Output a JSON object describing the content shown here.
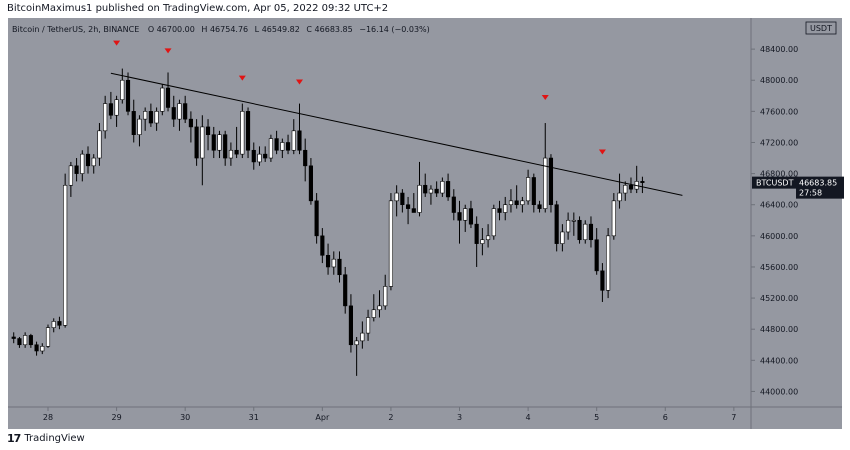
{
  "header": {
    "published_by": "BitcoinMaximus1 published on TradingView.com, Apr 05, 2022 09:32 UTC+2"
  },
  "footer": {
    "brand": "TradingView",
    "logo_text": "17"
  },
  "chart_data": {
    "type": "candlestick",
    "symbol_title": "Bitcoin / TetherUS, 2h, BINANCE",
    "ohlc_readout": {
      "o_label": "O",
      "o_value": "46700.00",
      "h_label": "H",
      "h_value": "46754.76",
      "l_label": "L",
      "l_value": "46549.82",
      "c_label": "C",
      "c_value": "46683.85",
      "change": "−16.14 (−0.03%)"
    },
    "currency_badge": "USDT",
    "price_tag": {
      "symbol": "BTCUSDT",
      "price": "46683.85",
      "countdown": "27:58",
      "value": 46683.85
    },
    "ylim": [
      43800,
      48800
    ],
    "y_ticks": [
      {
        "value": 44000,
        "label": "44000.00"
      },
      {
        "value": 44400,
        "label": "44400.00"
      },
      {
        "value": 44800,
        "label": "44800.00"
      },
      {
        "value": 45200,
        "label": "45200.00"
      },
      {
        "value": 45600,
        "label": "45600.00"
      },
      {
        "value": 46000,
        "label": "46000.00"
      },
      {
        "value": 46400,
        "label": "46400.00"
      },
      {
        "value": 46800,
        "label": "46800.00"
      },
      {
        "value": 47200,
        "label": "47200.00"
      },
      {
        "value": 47600,
        "label": "47600.00"
      },
      {
        "value": 48000,
        "label": "48000.00"
      },
      {
        "value": 48400,
        "label": "48400.00"
      }
    ],
    "x_ticks": [
      {
        "index": 6,
        "label": "28"
      },
      {
        "index": 18,
        "label": "29"
      },
      {
        "index": 30,
        "label": "30"
      },
      {
        "index": 42,
        "label": "31"
      },
      {
        "index": 54,
        "label": "Apr"
      },
      {
        "index": 66,
        "label": "2"
      },
      {
        "index": 78,
        "label": "3"
      },
      {
        "index": 90,
        "label": "4"
      },
      {
        "index": 102,
        "label": "5"
      },
      {
        "index": 114,
        "label": "6"
      },
      {
        "index": 126,
        "label": "7"
      }
    ],
    "x_range": [
      -1,
      129
    ],
    "candles": [
      {
        "o": 44700,
        "h": 44760,
        "l": 44620,
        "c": 44680
      },
      {
        "o": 44680,
        "h": 44700,
        "l": 44560,
        "c": 44600
      },
      {
        "o": 44600,
        "h": 44760,
        "l": 44560,
        "c": 44720
      },
      {
        "o": 44720,
        "h": 44740,
        "l": 44560,
        "c": 44600
      },
      {
        "o": 44600,
        "h": 44640,
        "l": 44460,
        "c": 44520
      },
      {
        "o": 44520,
        "h": 44620,
        "l": 44480,
        "c": 44580
      },
      {
        "o": 44580,
        "h": 44860,
        "l": 44560,
        "c": 44820
      },
      {
        "o": 44820,
        "h": 44940,
        "l": 44760,
        "c": 44900
      },
      {
        "o": 44900,
        "h": 44960,
        "l": 44800,
        "c": 44850
      },
      {
        "o": 44850,
        "h": 46800,
        "l": 44820,
        "c": 46650
      },
      {
        "o": 46650,
        "h": 46950,
        "l": 46500,
        "c": 46900
      },
      {
        "o": 46900,
        "h": 47000,
        "l": 46700,
        "c": 46800
      },
      {
        "o": 46800,
        "h": 47100,
        "l": 46700,
        "c": 47050
      },
      {
        "o": 47050,
        "h": 47150,
        "l": 46800,
        "c": 46900
      },
      {
        "o": 46900,
        "h": 47050,
        "l": 46800,
        "c": 47000
      },
      {
        "o": 47000,
        "h": 47450,
        "l": 46900,
        "c": 47350
      },
      {
        "o": 47350,
        "h": 47800,
        "l": 47250,
        "c": 47700
      },
      {
        "o": 47700,
        "h": 47850,
        "l": 47500,
        "c": 47550
      },
      {
        "o": 47550,
        "h": 47800,
        "l": 47400,
        "c": 47750
      },
      {
        "o": 47750,
        "h": 48150,
        "l": 47700,
        "c": 48000
      },
      {
        "o": 48000,
        "h": 48100,
        "l": 47550,
        "c": 47600
      },
      {
        "o": 47600,
        "h": 47750,
        "l": 47200,
        "c": 47300
      },
      {
        "o": 47300,
        "h": 47550,
        "l": 47150,
        "c": 47500
      },
      {
        "o": 47500,
        "h": 47650,
        "l": 47350,
        "c": 47600
      },
      {
        "o": 47600,
        "h": 47700,
        "l": 47400,
        "c": 47450
      },
      {
        "o": 47450,
        "h": 47650,
        "l": 47350,
        "c": 47600
      },
      {
        "o": 47600,
        "h": 47950,
        "l": 47550,
        "c": 47900
      },
      {
        "o": 47900,
        "h": 48100,
        "l": 47600,
        "c": 47650
      },
      {
        "o": 47650,
        "h": 47800,
        "l": 47400,
        "c": 47500
      },
      {
        "o": 47500,
        "h": 47750,
        "l": 47350,
        "c": 47700
      },
      {
        "o": 47700,
        "h": 47800,
        "l": 47450,
        "c": 47500
      },
      {
        "o": 47500,
        "h": 47600,
        "l": 47200,
        "c": 47400
      },
      {
        "o": 47400,
        "h": 47500,
        "l": 46900,
        "c": 47000
      },
      {
        "o": 47000,
        "h": 47550,
        "l": 46650,
        "c": 47400
      },
      {
        "o": 47400,
        "h": 47500,
        "l": 47100,
        "c": 47300
      },
      {
        "o": 47300,
        "h": 47400,
        "l": 47000,
        "c": 47100
      },
      {
        "o": 47100,
        "h": 47350,
        "l": 47000,
        "c": 47300
      },
      {
        "o": 47300,
        "h": 47350,
        "l": 46900,
        "c": 47000
      },
      {
        "o": 47000,
        "h": 47200,
        "l": 46900,
        "c": 47100
      },
      {
        "o": 47100,
        "h": 47400,
        "l": 47000,
        "c": 47050
      },
      {
        "o": 47050,
        "h": 47700,
        "l": 47000,
        "c": 47600
      },
      {
        "o": 47600,
        "h": 47650,
        "l": 47000,
        "c": 47100
      },
      {
        "o": 47100,
        "h": 47200,
        "l": 46850,
        "c": 46950
      },
      {
        "o": 46950,
        "h": 47150,
        "l": 46900,
        "c": 47050
      },
      {
        "o": 47050,
        "h": 47150,
        "l": 46950,
        "c": 47000
      },
      {
        "o": 47000,
        "h": 47300,
        "l": 46950,
        "c": 47250
      },
      {
        "o": 47250,
        "h": 47350,
        "l": 47050,
        "c": 47100
      },
      {
        "o": 47100,
        "h": 47250,
        "l": 47000,
        "c": 47200
      },
      {
        "o": 47200,
        "h": 47300,
        "l": 47050,
        "c": 47100
      },
      {
        "o": 47100,
        "h": 47500,
        "l": 47050,
        "c": 47350
      },
      {
        "o": 47350,
        "h": 47700,
        "l": 47050,
        "c": 47100
      },
      {
        "o": 47100,
        "h": 47250,
        "l": 46700,
        "c": 46900
      },
      {
        "o": 46900,
        "h": 47000,
        "l": 46400,
        "c": 46450
      },
      {
        "o": 46450,
        "h": 46550,
        "l": 45900,
        "c": 46000
      },
      {
        "o": 46000,
        "h": 46100,
        "l": 45650,
        "c": 45750
      },
      {
        "o": 45750,
        "h": 45900,
        "l": 45500,
        "c": 45600
      },
      {
        "o": 45600,
        "h": 45800,
        "l": 45500,
        "c": 45700
      },
      {
        "o": 45700,
        "h": 45800,
        "l": 45400,
        "c": 45500
      },
      {
        "o": 45500,
        "h": 45600,
        "l": 45000,
        "c": 45100
      },
      {
        "o": 45100,
        "h": 45250,
        "l": 44500,
        "c": 44600
      },
      {
        "o": 44600,
        "h": 44700,
        "l": 44200,
        "c": 44650
      },
      {
        "o": 44650,
        "h": 44900,
        "l": 44550,
        "c": 44750
      },
      {
        "o": 44750,
        "h": 45050,
        "l": 44650,
        "c": 44950
      },
      {
        "o": 44950,
        "h": 45250,
        "l": 44900,
        "c": 45050
      },
      {
        "o": 45050,
        "h": 45300,
        "l": 44950,
        "c": 45100
      },
      {
        "o": 45100,
        "h": 45500,
        "l": 45050,
        "c": 45350
      },
      {
        "o": 45350,
        "h": 46550,
        "l": 45300,
        "c": 46450
      },
      {
        "o": 46450,
        "h": 46650,
        "l": 46250,
        "c": 46550
      },
      {
        "o": 46550,
        "h": 46600,
        "l": 46300,
        "c": 46400
      },
      {
        "o": 46400,
        "h": 46500,
        "l": 46150,
        "c": 46350
      },
      {
        "o": 46350,
        "h": 46550,
        "l": 46300,
        "c": 46300
      },
      {
        "o": 46300,
        "h": 46950,
        "l": 46250,
        "c": 46650
      },
      {
        "o": 46650,
        "h": 46800,
        "l": 46500,
        "c": 46550
      },
      {
        "o": 46550,
        "h": 46650,
        "l": 46400,
        "c": 46600
      },
      {
        "o": 46600,
        "h": 46700,
        "l": 46500,
        "c": 46550
      },
      {
        "o": 46550,
        "h": 46750,
        "l": 46500,
        "c": 46700
      },
      {
        "o": 46700,
        "h": 46800,
        "l": 46450,
        "c": 46500
      },
      {
        "o": 46500,
        "h": 46600,
        "l": 46200,
        "c": 46300
      },
      {
        "o": 46300,
        "h": 46450,
        "l": 45900,
        "c": 46200
      },
      {
        "o": 46200,
        "h": 46400,
        "l": 46050,
        "c": 46350
      },
      {
        "o": 46350,
        "h": 46450,
        "l": 46100,
        "c": 46150
      },
      {
        "o": 46150,
        "h": 46250,
        "l": 45600,
        "c": 45900
      },
      {
        "o": 45900,
        "h": 46100,
        "l": 45750,
        "c": 45950
      },
      {
        "o": 45950,
        "h": 46150,
        "l": 45850,
        "c": 46000
      },
      {
        "o": 46000,
        "h": 46400,
        "l": 45950,
        "c": 46350
      },
      {
        "o": 46350,
        "h": 46450,
        "l": 46200,
        "c": 46300
      },
      {
        "o": 46300,
        "h": 46500,
        "l": 46200,
        "c": 46400
      },
      {
        "o": 46400,
        "h": 46600,
        "l": 46300,
        "c": 46450
      },
      {
        "o": 46450,
        "h": 46650,
        "l": 46350,
        "c": 46400
      },
      {
        "o": 46400,
        "h": 46500,
        "l": 46300,
        "c": 46450
      },
      {
        "o": 46450,
        "h": 46850,
        "l": 46400,
        "c": 46750
      },
      {
        "o": 46750,
        "h": 46800,
        "l": 46300,
        "c": 46400
      },
      {
        "o": 46400,
        "h": 46450,
        "l": 46300,
        "c": 46350
      },
      {
        "o": 46350,
        "h": 47450,
        "l": 46300,
        "c": 47000
      },
      {
        "o": 47000,
        "h": 47050,
        "l": 46300,
        "c": 46400
      },
      {
        "o": 46400,
        "h": 46450,
        "l": 45800,
        "c": 45900
      },
      {
        "o": 45900,
        "h": 46150,
        "l": 45800,
        "c": 46050
      },
      {
        "o": 46050,
        "h": 46300,
        "l": 45950,
        "c": 46200
      },
      {
        "o": 46200,
        "h": 46300,
        "l": 46000,
        "c": 46200
      },
      {
        "o": 46200,
        "h": 46250,
        "l": 45900,
        "c": 45950
      },
      {
        "o": 45950,
        "h": 46200,
        "l": 45900,
        "c": 46150
      },
      {
        "o": 46150,
        "h": 46250,
        "l": 45850,
        "c": 45950
      },
      {
        "o": 45950,
        "h": 46100,
        "l": 45500,
        "c": 45550
      },
      {
        "o": 45550,
        "h": 45650,
        "l": 45150,
        "c": 45300
      },
      {
        "o": 45300,
        "h": 46100,
        "l": 45200,
        "c": 46000
      },
      {
        "o": 46000,
        "h": 46550,
        "l": 45950,
        "c": 46450
      },
      {
        "o": 46450,
        "h": 46800,
        "l": 46350,
        "c": 46550
      },
      {
        "o": 46550,
        "h": 46700,
        "l": 46450,
        "c": 46650
      },
      {
        "o": 46650,
        "h": 46750,
        "l": 46550,
        "c": 46600
      },
      {
        "o": 46600,
        "h": 46900,
        "l": 46550,
        "c": 46700
      },
      {
        "o": 46700,
        "h": 46760,
        "l": 46550,
        "c": 46684
      }
    ],
    "trendline": {
      "start": {
        "index": 17,
        "value": 48090
      },
      "end": {
        "index": 117,
        "value": 46520
      }
    },
    "markers": [
      {
        "index": 18,
        "value": 48150
      },
      {
        "index": 27,
        "value": 48050
      },
      {
        "index": 40,
        "value": 47700
      },
      {
        "index": 50,
        "value": 47650
      },
      {
        "index": 93,
        "value": 47450
      },
      {
        "index": 103,
        "value": 46750
      }
    ],
    "colors": {
      "background": "#9598a1",
      "up": "#ffffff",
      "down": "#000000",
      "wick": "#000000",
      "trendline": "#000000",
      "marker": "#e01414",
      "price_tag_bg": "#131722",
      "price_tag_fg": "#ffffff",
      "axis_text": "#131722"
    }
  }
}
